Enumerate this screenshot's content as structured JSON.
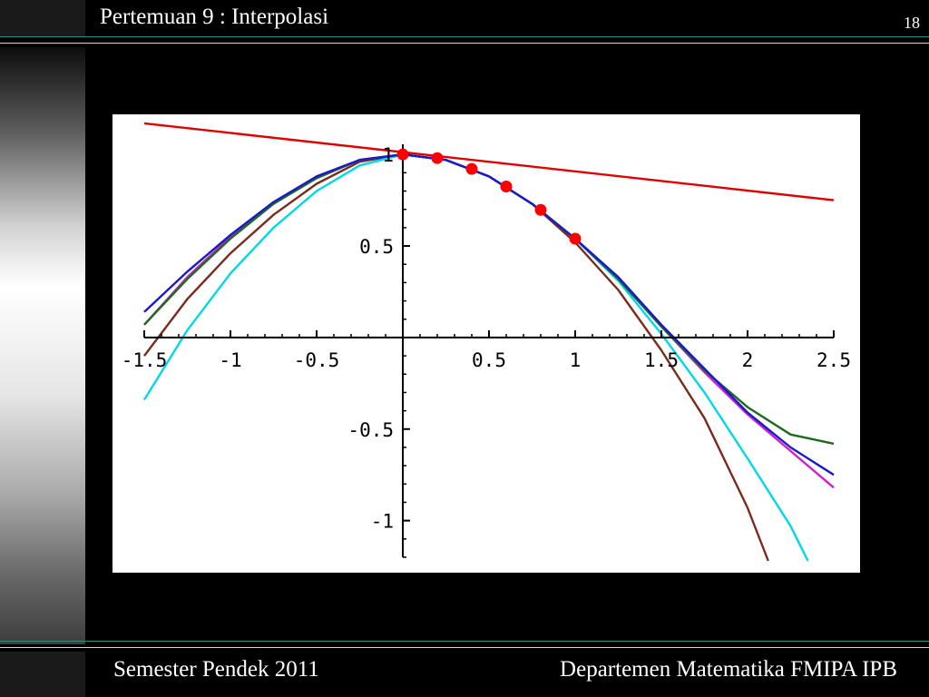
{
  "header": {
    "title": "Pertemuan 9 : Interpolasi",
    "page_number": "18"
  },
  "footer": {
    "left": "Semester Pendek 2011",
    "right": "Departemen Matematika FMIPA IPB"
  },
  "chart_data": {
    "type": "line",
    "title": "",
    "xlabel": "",
    "ylabel": "",
    "xlim": [
      -1.5,
      2.5
    ],
    "ylim": [
      -1.2,
      1.1
    ],
    "grid": false,
    "x_ticks": [
      {
        "value": -1.5,
        "label": "-1.5"
      },
      {
        "value": -1,
        "label": "-1"
      },
      {
        "value": -0.5,
        "label": "-0.5"
      },
      {
        "value": 0.5,
        "label": "0.5"
      },
      {
        "value": 1,
        "label": "1"
      },
      {
        "value": 1.5,
        "label": "1.5"
      },
      {
        "value": 2,
        "label": "2"
      },
      {
        "value": 2.5,
        "label": "2.5"
      }
    ],
    "y_ticks": [
      {
        "value": 1,
        "label": "1"
      },
      {
        "value": 0.5,
        "label": "0.5"
      },
      {
        "value": -0.5,
        "label": "-0.5"
      },
      {
        "value": -1,
        "label": "-1"
      }
    ],
    "points": {
      "color": "#ff0000",
      "x": [
        0,
        0.2,
        0.4,
        0.6,
        0.8,
        1.0
      ],
      "y": [
        1.0,
        0.98,
        0.921,
        0.825,
        0.697,
        0.54
      ]
    },
    "series": [
      {
        "color": "#e00000",
        "x": [
          -1.5,
          2.5
        ],
        "y": [
          1.17,
          0.75
        ]
      },
      {
        "color": "#7a2c1c",
        "x": [
          -1.5,
          -1.25,
          -1.0,
          -0.75,
          -0.5,
          -0.25,
          0,
          0.25,
          0.5,
          0.75,
          1.0,
          1.25,
          1.5,
          1.75,
          2.0,
          2.12
        ],
        "y": [
          -0.1,
          0.21,
          0.46,
          0.67,
          0.84,
          0.96,
          1.0,
          0.97,
          0.88,
          0.73,
          0.52,
          0.26,
          -0.07,
          -0.44,
          -0.93,
          -1.22
        ]
      },
      {
        "color": "#00d8e8",
        "x": [
          -1.5,
          -1.25,
          -1.0,
          -0.75,
          -0.5,
          -0.25,
          0,
          0.25,
          0.5,
          0.75,
          1.0,
          1.25,
          1.5,
          1.75,
          2.0,
          2.25,
          2.35
        ],
        "y": [
          -0.34,
          0.04,
          0.35,
          0.6,
          0.8,
          0.94,
          1.0,
          0.97,
          0.88,
          0.73,
          0.54,
          0.31,
          0.02,
          -0.3,
          -0.66,
          -1.03,
          -1.22
        ]
      },
      {
        "color": "#cc22cc",
        "x": [
          -1.5,
          -1.25,
          -1.0,
          -0.75,
          -0.5,
          -0.25,
          0,
          0.25,
          0.5,
          0.75,
          1.0,
          1.25,
          1.5,
          1.75,
          2.0,
          2.25,
          2.5
        ],
        "y": [
          0.07,
          0.33,
          0.55,
          0.73,
          0.88,
          0.97,
          1.0,
          0.97,
          0.88,
          0.73,
          0.54,
          0.32,
          0.06,
          -0.19,
          -0.42,
          -0.62,
          -0.82
        ]
      },
      {
        "color": "#1e6b1e",
        "x": [
          -1.5,
          -1.25,
          -1.0,
          -0.75,
          -0.5,
          -0.25,
          0,
          0.25,
          0.5,
          0.75,
          1.0,
          1.25,
          1.5,
          1.75,
          2.0,
          2.25,
          2.5
        ],
        "y": [
          0.07,
          0.32,
          0.54,
          0.73,
          0.87,
          0.97,
          1.0,
          0.97,
          0.88,
          0.73,
          0.54,
          0.32,
          0.06,
          -0.18,
          -0.38,
          -0.53,
          -0.58
        ]
      },
      {
        "color": "#1a1acc",
        "x": [
          -1.5,
          -1.25,
          -1.0,
          -0.75,
          -0.5,
          -0.25,
          0,
          0.25,
          0.5,
          0.75,
          1.0,
          1.25,
          1.5,
          1.75,
          2.0,
          2.25,
          2.5
        ],
        "y": [
          0.14,
          0.36,
          0.56,
          0.74,
          0.88,
          0.97,
          1.0,
          0.97,
          0.88,
          0.73,
          0.54,
          0.33,
          0.07,
          -0.17,
          -0.41,
          -0.6,
          -0.75
        ]
      }
    ]
  }
}
